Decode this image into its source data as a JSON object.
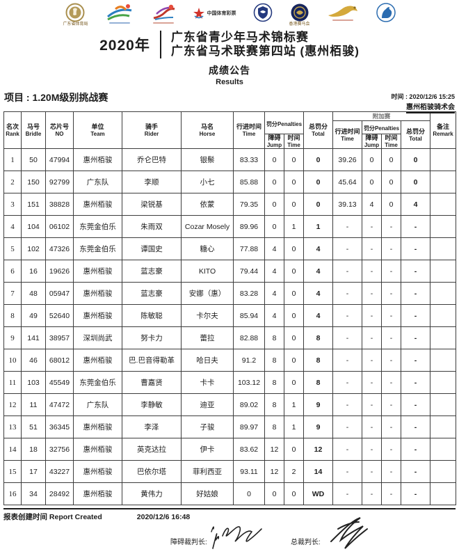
{
  "logos": [
    {
      "name": "guangdong-sports-bureau-logo",
      "style": "gold-seal",
      "caption": "广东省体育局",
      "fineprint": false
    },
    {
      "name": "youth-championship-logo",
      "style": "swoosh",
      "caption": "",
      "fineprint": true,
      "fineprint_color": "blue"
    },
    {
      "name": "equestrian-event-logo",
      "style": "rider",
      "caption": "",
      "fineprint": true,
      "fineprint_color": "red"
    },
    {
      "name": "china-sports-lottery-logo",
      "style": "star",
      "caption": "中国体育彩票",
      "fineprint": false
    },
    {
      "name": "equestrian-association-crest",
      "style": "blue-crest",
      "caption": "",
      "fineprint": false
    },
    {
      "name": "hongkong-jockey-club-logo",
      "style": "navy-circle",
      "caption": "香港赛马会",
      "fineprint": false
    },
    {
      "name": "golden-horse-logo",
      "style": "gold-horse",
      "caption": "",
      "fineprint": true,
      "fineprint_color": "red"
    },
    {
      "name": "blue-horse-head-logo",
      "style": "blue-horse",
      "caption": "",
      "fineprint": false
    }
  ],
  "header": {
    "year": "2020年",
    "title_line1": "广东省青少年马术锦标赛",
    "title_line2": "广东省马术联赛第四站 (惠州栢骏)",
    "notice_cn": "成绩公告",
    "notice_en": "Results"
  },
  "meta": {
    "event": "项目 : 1.20M级别挑战赛",
    "time": "时间 : 2020/12/6 15:25",
    "club": "惠州栢骏骑术会"
  },
  "table": {
    "head": {
      "rank_cn": "名次",
      "rank_en": "Rank",
      "bridle_cn": "马号",
      "bridle_en": "Bridle",
      "chip_cn": "芯片号",
      "chip_en": "NO",
      "team_cn": "单位",
      "team_en": "Team",
      "rider_cn": "骑手",
      "rider_en": "Rider",
      "horse_cn": "马名",
      "horse_en": "Horse",
      "time_cn": "行进时间",
      "time_en": "Time",
      "pen_cn": "罚分",
      "pen_en": "Penalties",
      "jump_cn": "障碍",
      "jump_en": "Jump",
      "tpen_cn": "时间",
      "tpen_en": "Time",
      "total_cn": "总罚分",
      "total_en": "Total",
      "jumpoff": "附加赛",
      "jo_time_cn": "行进时间",
      "jo_time_en": "Time",
      "jo_pen_cn": "罚分",
      "jo_pen_en": "Penalties",
      "jo_jump_cn": "障碍",
      "jo_jump_en": "Jump",
      "jo_tpen_cn": "时间",
      "jo_tpen_en": "Time",
      "jo_total_cn": "总罚分",
      "jo_total_en": "Total",
      "remark_cn": "备注",
      "remark_en": "Remark"
    },
    "rows": [
      [
        "1",
        "50",
        "47994",
        "惠州栢骏",
        "乔仑巴特",
        "银鬃",
        "83.33",
        "0",
        "0",
        "0",
        "39.26",
        "0",
        "0",
        "0",
        ""
      ],
      [
        "2",
        "150",
        "92799",
        "广东队",
        "李顺",
        "小七",
        "85.88",
        "0",
        "0",
        "0",
        "45.64",
        "0",
        "0",
        "0",
        ""
      ],
      [
        "3",
        "151",
        "38828",
        "惠州栢骏",
        "梁锐基",
        "依蒙",
        "79.35",
        "0",
        "0",
        "0",
        "39.13",
        "4",
        "0",
        "4",
        ""
      ],
      [
        "4",
        "104",
        "06102",
        "东莞金伯乐",
        "朱雨双",
        "Cozar Mosely",
        "89.96",
        "0",
        "1",
        "1",
        "-",
        "-",
        "-",
        "-",
        ""
      ],
      [
        "5",
        "102",
        "47326",
        "东莞金伯乐",
        "谭国史",
        "糖心",
        "77.88",
        "4",
        "0",
        "4",
        "-",
        "-",
        "-",
        "-",
        ""
      ],
      [
        "6",
        "16",
        "19626",
        "惠州栢骏",
        "蓝志豪",
        "KITO",
        "79.44",
        "4",
        "0",
        "4",
        "-",
        "-",
        "-",
        "-",
        ""
      ],
      [
        "7",
        "48",
        "05947",
        "惠州栢骏",
        "蓝志豪",
        "安娜（惠）",
        "83.28",
        "4",
        "0",
        "4",
        "-",
        "-",
        "-",
        "-",
        ""
      ],
      [
        "8",
        "49",
        "52640",
        "惠州栢骏",
        "陈敏聪",
        "卡尔夫",
        "85.94",
        "4",
        "0",
        "4",
        "-",
        "-",
        "-",
        "-",
        ""
      ],
      [
        "9",
        "141",
        "38957",
        "深圳尚武",
        "努卡力",
        "蕾拉",
        "82.88",
        "8",
        "0",
        "8",
        "-",
        "-",
        "-",
        "-",
        ""
      ],
      [
        "10",
        "46",
        "68012",
        "惠州栢骏",
        "巴.巴音得勒革",
        "哈日夫",
        "91.2",
        "8",
        "0",
        "8",
        "-",
        "-",
        "-",
        "-",
        ""
      ],
      [
        "11",
        "103",
        "45549",
        "东莞金伯乐",
        "曹嘉贤",
        "卡卡",
        "103.12",
        "8",
        "0",
        "8",
        "-",
        "-",
        "-",
        "-",
        ""
      ],
      [
        "12",
        "11",
        "47472",
        "广东队",
        "李静敏",
        "迪亚",
        "89.02",
        "8",
        "1",
        "9",
        "-",
        "-",
        "-",
        "-",
        ""
      ],
      [
        "13",
        "51",
        "36345",
        "惠州栢骏",
        "李泽",
        "子骏",
        "89.97",
        "8",
        "1",
        "9",
        "-",
        "-",
        "-",
        "-",
        ""
      ],
      [
        "14",
        "18",
        "32756",
        "惠州栢骏",
        "英克达拉",
        "伊卡",
        "83.62",
        "12",
        "0",
        "12",
        "-",
        "-",
        "-",
        "-",
        ""
      ],
      [
        "15",
        "17",
        "43227",
        "惠州栢骏",
        "巴依尔塔",
        "菲利西亚",
        "93.11",
        "12",
        "2",
        "14",
        "-",
        "-",
        "-",
        "-",
        ""
      ],
      [
        "16",
        "34",
        "28492",
        "惠州栢骏",
        "黄伟力",
        "好姑娘",
        "0",
        "0",
        "0",
        "WD",
        "-",
        "-",
        "-",
        "-",
        ""
      ]
    ]
  },
  "footer": {
    "report_label": "报表创建时间 Report Created",
    "report_time": "2020/12/6 16:48",
    "judge1_label": "障碍裁判长:",
    "judge2_label": "总裁判长:"
  }
}
